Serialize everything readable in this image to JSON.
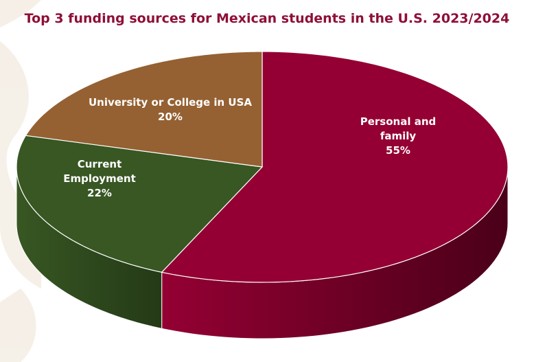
{
  "colors": {
    "title": "#8e0f37",
    "background": "#ffffff",
    "watermark": "#f3ece2"
  },
  "chart_data": {
    "type": "pie",
    "title": "Top 3 funding sources for Mexican students in the U.S. 2023/2024",
    "style": "3d",
    "slices": [
      {
        "label": "Personal and family",
        "value": 55,
        "display": "55%",
        "color": "#940033",
        "side_color": "#4a0019"
      },
      {
        "label": "Current Employment",
        "value": 22,
        "display": "22%",
        "color": "#385723",
        "side_color": "#243a17"
      },
      {
        "label": "University or College in USA",
        "value": 20,
        "display": "20%",
        "color": "#956132",
        "side_color": "#5e3d20"
      }
    ],
    "label_lines": [
      [
        "Personal and",
        "family",
        "55%"
      ],
      [
        "Current",
        "Employment",
        "22%"
      ],
      [
        "University or College in USA",
        "20%"
      ]
    ]
  }
}
